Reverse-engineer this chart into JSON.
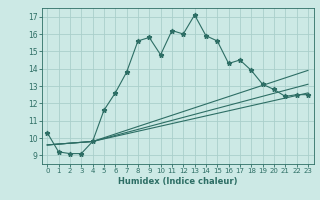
{
  "title": "",
  "xlabel": "Humidex (Indice chaleur)",
  "ylabel": "",
  "xlim": [
    -0.5,
    23.5
  ],
  "ylim": [
    8.5,
    17.5
  ],
  "xticks": [
    0,
    1,
    2,
    3,
    4,
    5,
    6,
    7,
    8,
    9,
    10,
    11,
    12,
    13,
    14,
    15,
    16,
    17,
    18,
    19,
    20,
    21,
    22,
    23
  ],
  "yticks": [
    9,
    10,
    11,
    12,
    13,
    14,
    15,
    16,
    17
  ],
  "bg_color": "#cce9e5",
  "grid_color": "#aacfcb",
  "line_color": "#2d6e65",
  "line1_x": [
    0,
    1,
    2,
    3,
    4,
    5,
    6,
    7,
    8,
    9,
    10,
    11,
    12,
    13,
    14,
    15,
    16,
    17,
    18,
    19,
    20,
    21,
    22,
    23
  ],
  "line1_y": [
    10.3,
    9.2,
    9.1,
    9.1,
    9.8,
    11.6,
    12.6,
    13.8,
    15.6,
    15.8,
    14.8,
    16.2,
    16.0,
    17.1,
    15.9,
    15.6,
    14.3,
    14.5,
    13.9,
    13.1,
    12.8,
    12.4,
    12.5,
    12.5
  ],
  "line2_x": [
    0,
    4,
    23
  ],
  "line2_y": [
    9.6,
    9.8,
    12.6
  ],
  "line3_x": [
    0,
    4,
    23
  ],
  "line3_y": [
    9.6,
    9.8,
    13.1
  ],
  "line4_x": [
    0,
    4,
    23
  ],
  "line4_y": [
    9.6,
    9.8,
    13.9
  ]
}
